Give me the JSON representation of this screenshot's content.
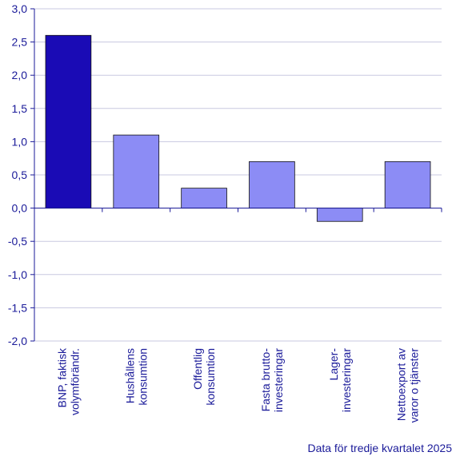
{
  "chart_data": {
    "type": "bar",
    "categories": [
      [
        "BNP, faktisk",
        "volymförändr."
      ],
      [
        "Hushållens",
        "konsumtion"
      ],
      [
        "Offentlig",
        "konsumtion"
      ],
      [
        "Fasta brutto-",
        "investeringar"
      ],
      [
        "Lager-",
        "investeringar"
      ],
      [
        "Nettoexport av",
        "varor o tjänster"
      ]
    ],
    "values": [
      2.6,
      1.1,
      0.3,
      0.7,
      -0.2,
      0.7
    ],
    "ylim": [
      -2.0,
      3.0
    ],
    "yticks": [
      3.0,
      2.5,
      2.0,
      1.5,
      1.0,
      0.5,
      0.0,
      -0.5,
      -1.0,
      -1.5,
      -2.0
    ],
    "ytick_labels": [
      "3,0",
      "2,5",
      "2,0",
      "1,5",
      "1,0",
      "0,5",
      "0,0",
      "-0,5",
      "-1,0",
      "-1,5",
      "-2,0"
    ],
    "grid": true,
    "title": "",
    "xlabel": "",
    "ylabel": "",
    "footnote": "Data för tredje kvartalet 2025",
    "colors": {
      "highlight": "#1a0bb5",
      "bar": "#8c8cf5",
      "bar_stroke": "#111111",
      "grid": "#c8c8e0",
      "axis": "#1a1a99",
      "text": "#1a1a99"
    }
  }
}
